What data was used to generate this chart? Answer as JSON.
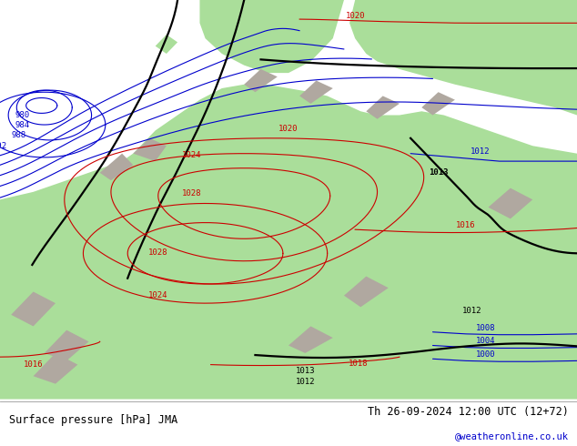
{
  "title_left": "Surface pressure [hPa] JMA",
  "title_right": "Th 26-09-2024 12:00 UTC (12+72)",
  "credit": "@weatheronline.co.uk",
  "land_color": "#aade9a",
  "sea_color": "#d8d8d8",
  "contour_blue": "#0000cc",
  "contour_black": "#000000",
  "contour_red": "#cc0000",
  "bottom_bar_color": "#ffffff",
  "text_color": "#000000",
  "credit_color": "#0000cc",
  "lw_thin": 0.8,
  "lw_thick": 1.6,
  "fs_label": 6.5
}
